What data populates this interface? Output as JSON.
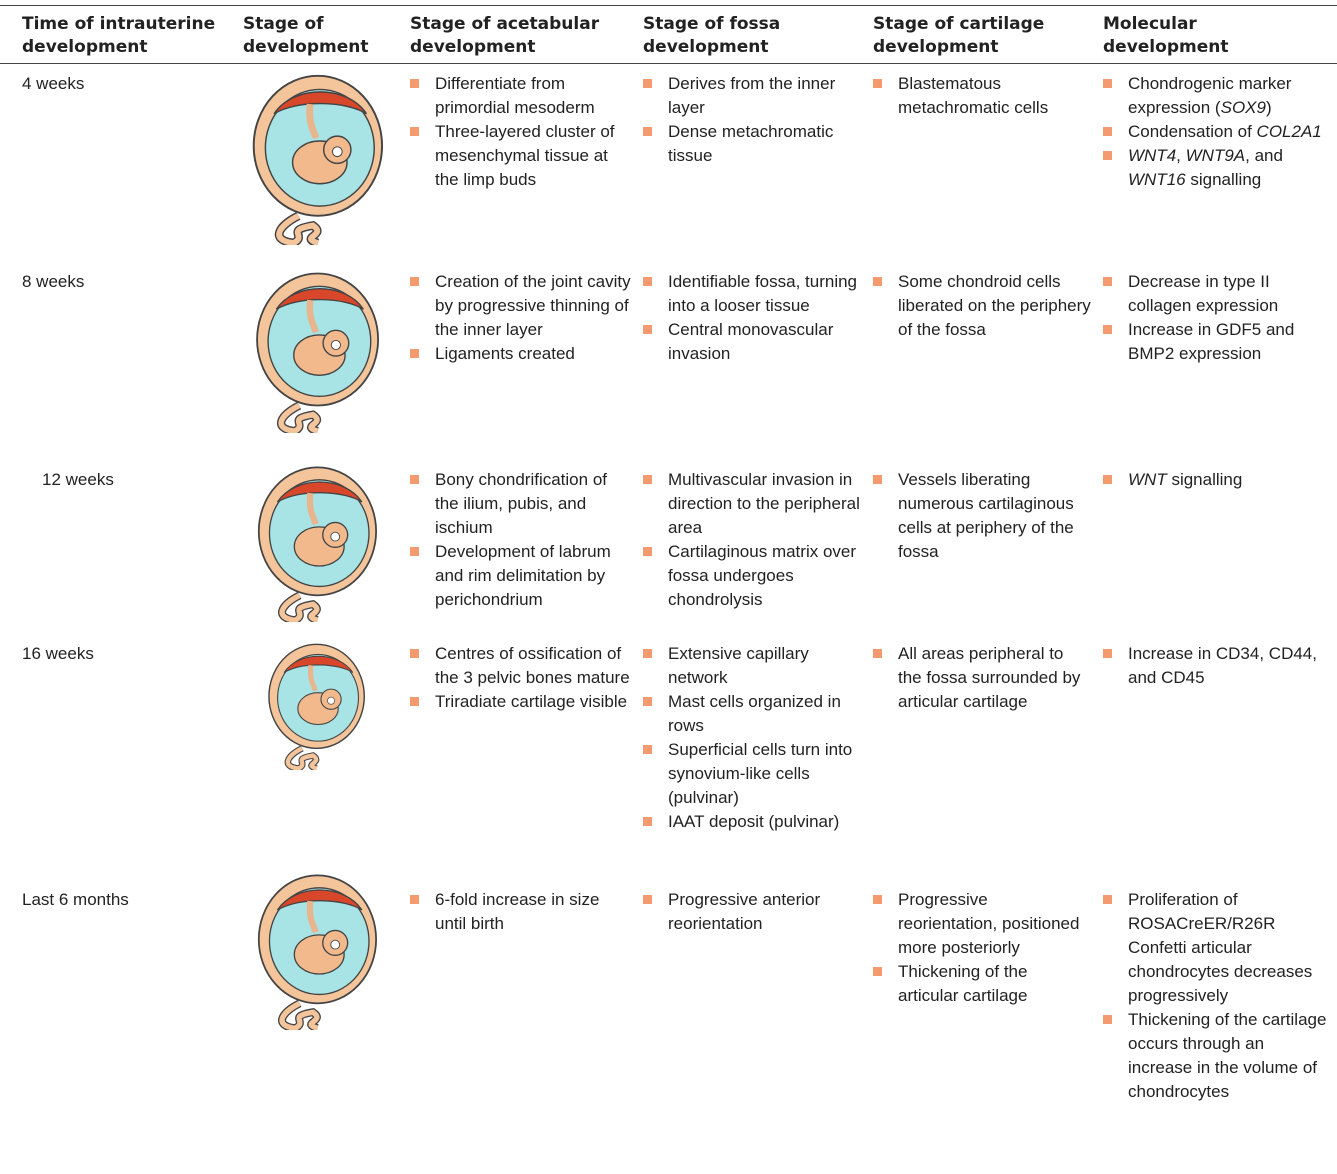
{
  "header": [
    [
      "Time of intrauterine",
      "development"
    ],
    [
      "Stage of",
      "development"
    ],
    [
      "Stage of acetabular",
      "development"
    ],
    [
      "Stage of fossa",
      "development"
    ],
    [
      "Stage of cartilage",
      "development"
    ],
    [
      "Molecular",
      "development"
    ]
  ],
  "rows": [
    {
      "time": "4 weeks",
      "acetabular": [
        "Differentiate from primordial mesoderm",
        "Three-layered cluster of mesenchymal tissue at the limp buds"
      ],
      "fossa": [
        "Derives from the inner layer",
        "Dense metachromatic tissue"
      ],
      "cartilage": [
        "Blastematous metachromatic cells"
      ],
      "molecular": [
        [
          "Chondrogenic marker expression (",
          {
            "italic": "SOX9"
          },
          ")"
        ],
        [
          "Condensation of ",
          {
            "italic": "COL2A1"
          }
        ],
        [
          {
            "italic": "WNT4"
          },
          ", ",
          {
            "italic": "WNT9A"
          },
          ", and ",
          {
            "italic": "WNT16"
          },
          " signalling"
        ]
      ]
    },
    {
      "time": "8 weeks",
      "acetabular": [
        "Creation of the joint cavity by progressive thinning of the inner layer",
        "Ligaments created"
      ],
      "fossa": [
        "Identifiable fossa, turning into a looser tissue",
        "Central monovascular invasion"
      ],
      "cartilage": [
        "Some chondroid cells liberated on the periphery of the fossa"
      ],
      "molecular": [
        "Decrease in type II collagen expression",
        "Increase in GDF5 and BMP2 expression"
      ]
    },
    {
      "time": "12 weeks",
      "acetabular": [
        "Bony chondrification of the ilium, pubis, and ischium",
        "Development of labrum and rim delimitation by perichondrium"
      ],
      "fossa": [
        "Multivascular invasion in direction to the peripheral area",
        "Cartilaginous matrix over fossa undergoes chondrolysis"
      ],
      "cartilage": [
        "Vessels liberating numerous cartilaginous cells at periphery of the fossa"
      ],
      "molecular": [
        [
          {
            "italic": "WNT"
          },
          " signalling"
        ]
      ]
    },
    {
      "time": "16 weeks",
      "acetabular": [
        "Centres of ossification of the 3 pelvic bones mature",
        "Triradiate cartilage visible"
      ],
      "fossa": [
        "Extensive capillary network",
        "Mast cells organized in rows",
        "Superficial cells turn into synovium-like cells (pulvinar)",
        "IAAT deposit (pulvinar)"
      ],
      "cartilage": [
        "All areas peripheral to the fossa surrounded by articular cartilage"
      ],
      "molecular": [
        "Increase in CD34, CD44, and CD45"
      ]
    },
    {
      "time": "Last 6 months",
      "acetabular": [
        "6-fold increase in size until birth"
      ],
      "fossa": [
        "Progressive anterior reorientation"
      ],
      "cartilage": [
        "Progressive reorientation, positioned more posteriorly",
        "Thickening of the articular cartilage"
      ],
      "molecular": [
        "Proliferation of ROSACreER/R26R Confetti articular chondrocytes decreases progressively",
        "Thickening of the cartilage occurs through an increase in the volume of chondrocytes"
      ]
    }
  ]
}
